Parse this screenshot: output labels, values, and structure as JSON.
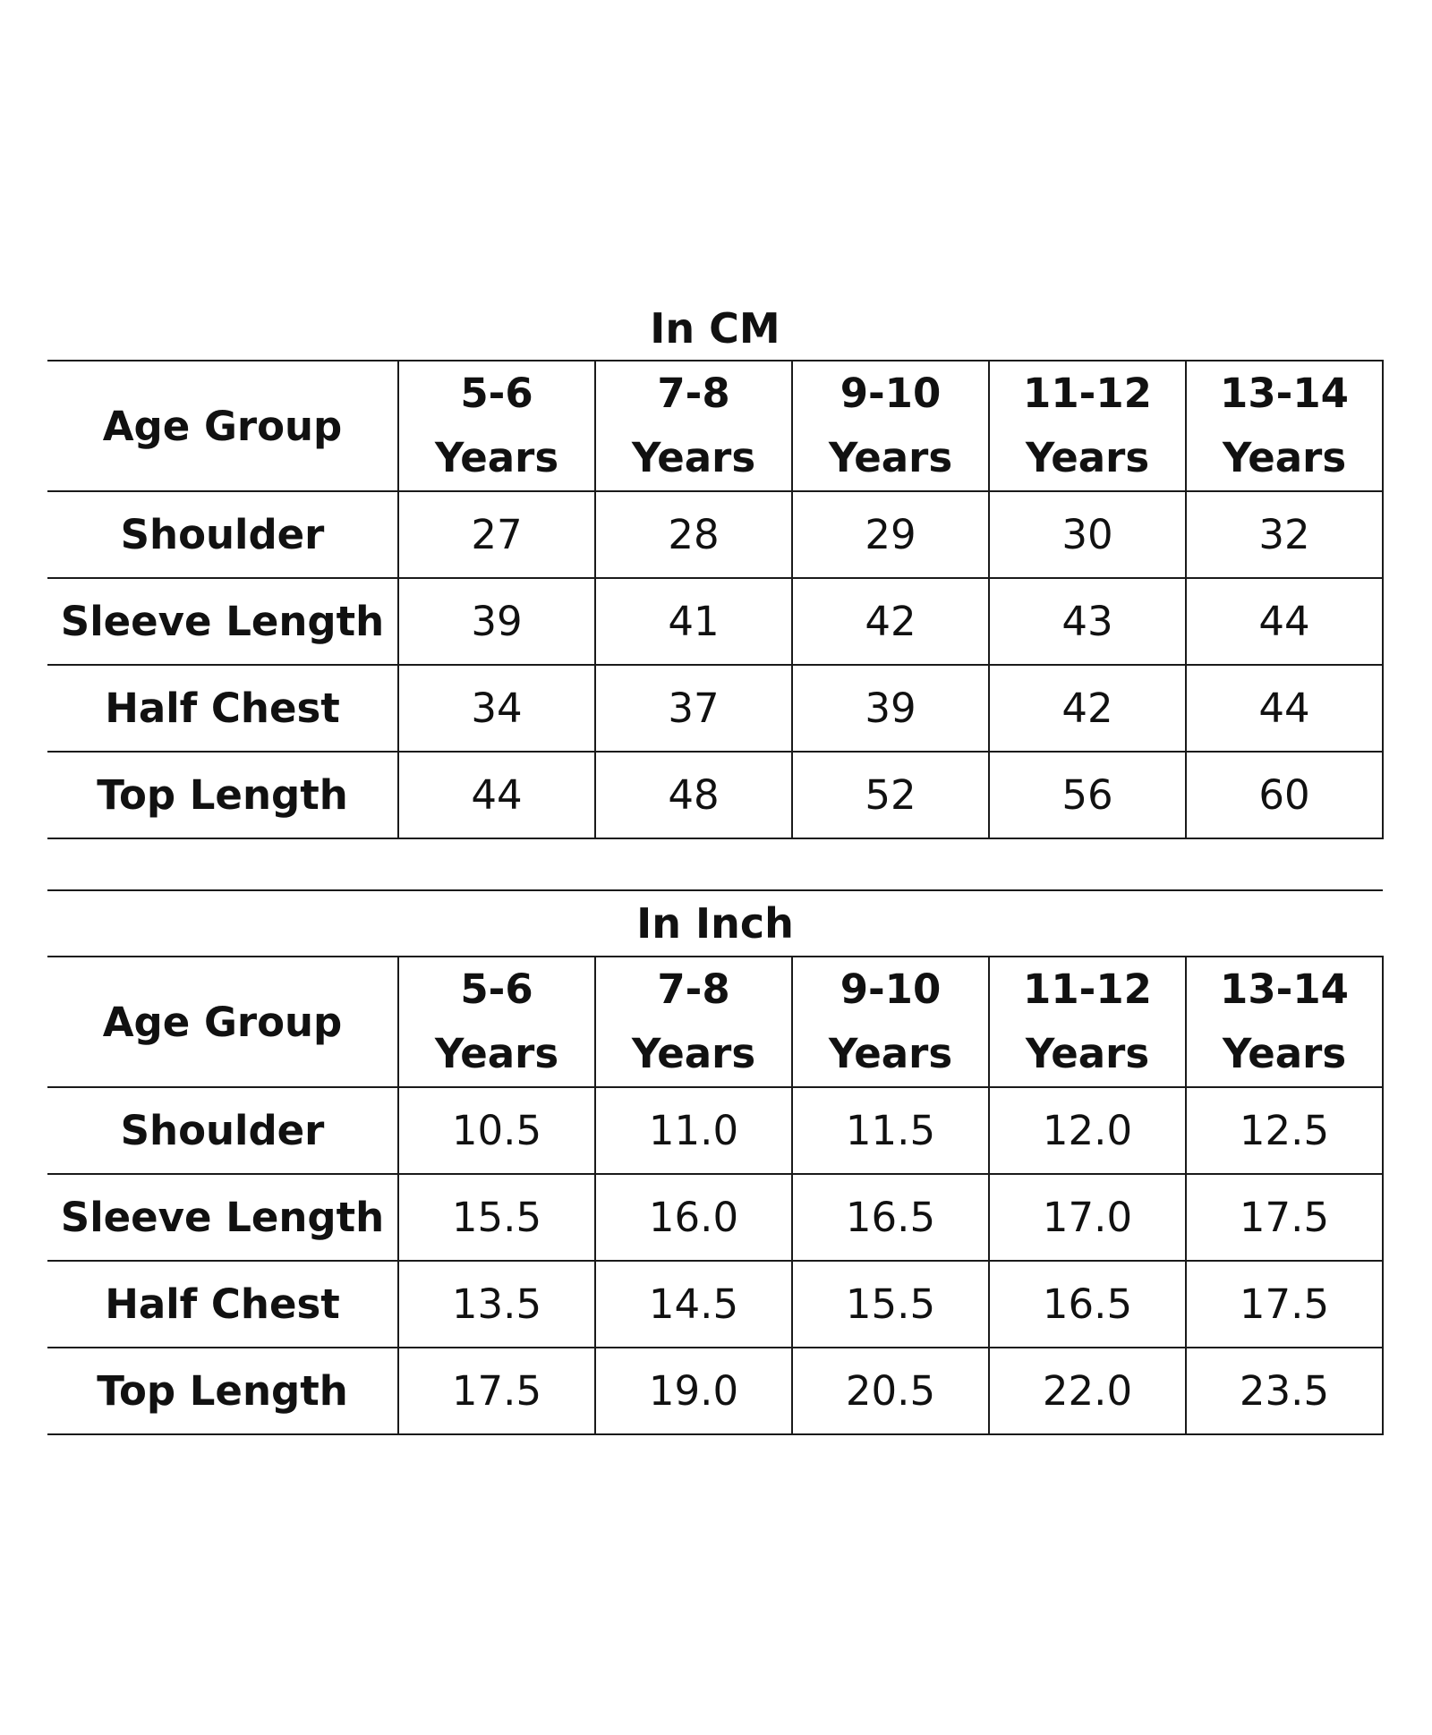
{
  "tables": [
    {
      "title": "In CM",
      "header": {
        "label": "Age Group",
        "ages": [
          {
            "range": "5-6",
            "unit": "Years"
          },
          {
            "range": "7-8",
            "unit": "Years"
          },
          {
            "range": "9-10",
            "unit": "Years"
          },
          {
            "range": "11-12",
            "unit": "Years"
          },
          {
            "range": "13-14",
            "unit": "Years"
          }
        ]
      },
      "rows": [
        {
          "label": "Shoulder",
          "values": [
            "27",
            "28",
            "29",
            "30",
            "32"
          ]
        },
        {
          "label": "Sleeve Length",
          "values": [
            "39",
            "41",
            "42",
            "43",
            "44"
          ]
        },
        {
          "label": "Half Chest",
          "values": [
            "34",
            "37",
            "39",
            "42",
            "44"
          ]
        },
        {
          "label": "Top Length",
          "values": [
            "44",
            "48",
            "52",
            "56",
            "60"
          ]
        }
      ]
    },
    {
      "title": "In Inch",
      "header": {
        "label": "Age Group",
        "ages": [
          {
            "range": "5-6",
            "unit": "Years"
          },
          {
            "range": "7-8",
            "unit": "Years"
          },
          {
            "range": "9-10",
            "unit": "Years"
          },
          {
            "range": "11-12",
            "unit": "Years"
          },
          {
            "range": "13-14",
            "unit": "Years"
          }
        ]
      },
      "rows": [
        {
          "label": "Shoulder",
          "values": [
            "10.5",
            "11.0",
            "11.5",
            "12.0",
            "12.5"
          ]
        },
        {
          "label": "Sleeve Length",
          "values": [
            "15.5",
            "16.0",
            "16.5",
            "17.0",
            "17.5"
          ]
        },
        {
          "label": "Half Chest",
          "values": [
            "13.5",
            "14.5",
            "15.5",
            "16.5",
            "17.5"
          ]
        },
        {
          "label": "Top Length",
          "values": [
            "17.5",
            "19.0",
            "20.5",
            "22.0",
            "23.5"
          ]
        }
      ]
    }
  ]
}
